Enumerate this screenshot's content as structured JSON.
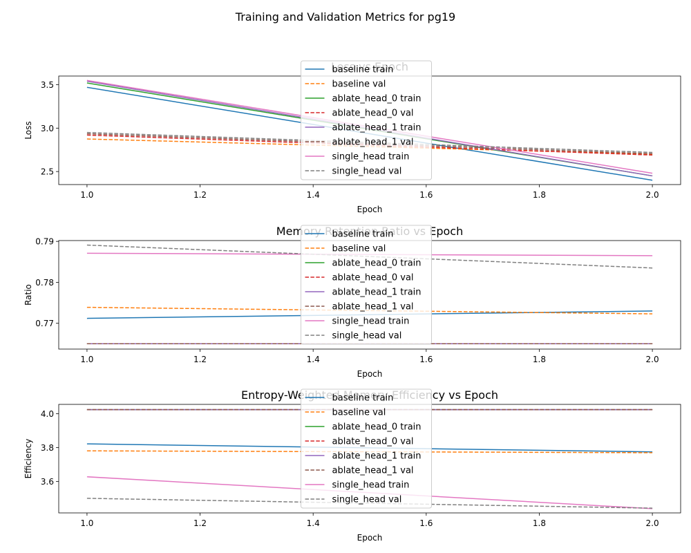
{
  "figure": {
    "suptitle": "Training and Validation Metrics for pg19"
  },
  "chart_data": [
    {
      "type": "line",
      "title": "Loss vs Epoch",
      "xlabel": "Epoch",
      "ylabel": "Loss",
      "x": [
        1.0,
        2.0
      ],
      "xlim": [
        0.95,
        2.05
      ],
      "ylim": [
        2.35,
        3.6
      ],
      "xticks": [
        1.0,
        1.2,
        1.4,
        1.6,
        1.8,
        2.0
      ],
      "xtick_labels": [
        "1.0",
        "1.2",
        "1.4",
        "1.6",
        "1.8",
        "2.0"
      ],
      "yticks": [
        2.5,
        3.0,
        3.5
      ],
      "ytick_labels": [
        "2.5",
        "3.0",
        "3.5"
      ],
      "legend": "upper-center",
      "grid": false,
      "series": [
        {
          "name": "baseline train",
          "values": [
            3.47,
            2.4
          ],
          "color": "#1f77b4",
          "style": "solid"
        },
        {
          "name": "baseline val",
          "values": [
            2.875,
            2.7
          ],
          "color": "#ff7f0e",
          "style": "dashed"
        },
        {
          "name": "ablate_head_0 train",
          "values": [
            3.52,
            2.45
          ],
          "color": "#2ca02c",
          "style": "solid"
        },
        {
          "name": "ablate_head_0 val",
          "values": [
            2.92,
            2.69
          ],
          "color": "#d62728",
          "style": "dashed"
        },
        {
          "name": "ablate_head_1 train",
          "values": [
            3.54,
            2.45
          ],
          "color": "#9467bd",
          "style": "solid"
        },
        {
          "name": "ablate_head_1 val",
          "values": [
            2.935,
            2.705
          ],
          "color": "#8c564b",
          "style": "dashed"
        },
        {
          "name": "single_head train",
          "values": [
            3.55,
            2.48
          ],
          "color": "#e377c2",
          "style": "solid"
        },
        {
          "name": "single_head val",
          "values": [
            2.95,
            2.72
          ],
          "color": "#7f7f7f",
          "style": "dashed"
        }
      ]
    },
    {
      "type": "line",
      "title": "Memory Retention Ratio vs Epoch",
      "xlabel": "Epoch",
      "ylabel": "Ratio",
      "x": [
        1.0,
        2.0
      ],
      "xlim": [
        0.95,
        2.05
      ],
      "ylim": [
        0.7637,
        0.7902
      ],
      "xticks": [
        1.0,
        1.2,
        1.4,
        1.6,
        1.8,
        2.0
      ],
      "xtick_labels": [
        "1.0",
        "1.2",
        "1.4",
        "1.6",
        "1.8",
        "2.0"
      ],
      "yticks": [
        0.77,
        0.78,
        0.79
      ],
      "ytick_labels": [
        "0.77",
        "0.78",
        "0.79"
      ],
      "legend": "upper-center",
      "grid": false,
      "series": [
        {
          "name": "baseline train",
          "values": [
            0.7712,
            0.773
          ],
          "color": "#1f77b4",
          "style": "solid"
        },
        {
          "name": "baseline val",
          "values": [
            0.7739,
            0.7723
          ],
          "color": "#ff7f0e",
          "style": "dashed"
        },
        {
          "name": "ablate_head_0 train",
          "values": [
            0.765,
            0.765
          ],
          "color": "#2ca02c",
          "style": "solid"
        },
        {
          "name": "ablate_head_0 val",
          "values": [
            0.765,
            0.765
          ],
          "color": "#d62728",
          "style": "dashed"
        },
        {
          "name": "ablate_head_1 train",
          "values": [
            0.765,
            0.765
          ],
          "color": "#9467bd",
          "style": "solid"
        },
        {
          "name": "ablate_head_1 val",
          "values": [
            0.765,
            0.765
          ],
          "color": "#8c564b",
          "style": "dashed"
        },
        {
          "name": "single_head train",
          "values": [
            0.7871,
            0.7865
          ],
          "color": "#e377c2",
          "style": "solid"
        },
        {
          "name": "single_head val",
          "values": [
            0.7891,
            0.7835
          ],
          "color": "#7f7f7f",
          "style": "dashed"
        }
      ]
    },
    {
      "type": "line",
      "title": "Entropy-Weighted Memory Efficiency vs Epoch",
      "xlabel": "Epoch",
      "ylabel": "Efficiency",
      "x": [
        1.0,
        2.0
      ],
      "xlim": [
        0.95,
        2.05
      ],
      "ylim": [
        3.415,
        4.055
      ],
      "xticks": [
        1.0,
        1.2,
        1.4,
        1.6,
        1.8,
        2.0
      ],
      "xtick_labels": [
        "1.0",
        "1.2",
        "1.4",
        "1.6",
        "1.8",
        "2.0"
      ],
      "yticks": [
        3.6,
        3.8,
        4.0
      ],
      "ytick_labels": [
        "3.6",
        "3.8",
        "4.0"
      ],
      "legend": "upper-center",
      "grid": false,
      "series": [
        {
          "name": "baseline train",
          "values": [
            3.822,
            3.775
          ],
          "color": "#1f77b4",
          "style": "solid"
        },
        {
          "name": "baseline val",
          "values": [
            3.781,
            3.77
          ],
          "color": "#ff7f0e",
          "style": "dashed"
        },
        {
          "name": "ablate_head_0 train",
          "values": [
            4.024,
            4.024
          ],
          "color": "#2ca02c",
          "style": "solid"
        },
        {
          "name": "ablate_head_0 val",
          "values": [
            4.024,
            4.024
          ],
          "color": "#d62728",
          "style": "dashed"
        },
        {
          "name": "ablate_head_1 train",
          "values": [
            4.024,
            4.024
          ],
          "color": "#9467bd",
          "style": "solid"
        },
        {
          "name": "ablate_head_1 val",
          "values": [
            4.024,
            4.024
          ],
          "color": "#8c564b",
          "style": "dashed"
        },
        {
          "name": "single_head train",
          "values": [
            3.628,
            3.44
          ],
          "color": "#e377c2",
          "style": "solid"
        },
        {
          "name": "single_head val",
          "values": [
            3.501,
            3.443
          ],
          "color": "#7f7f7f",
          "style": "dashed"
        }
      ]
    }
  ]
}
